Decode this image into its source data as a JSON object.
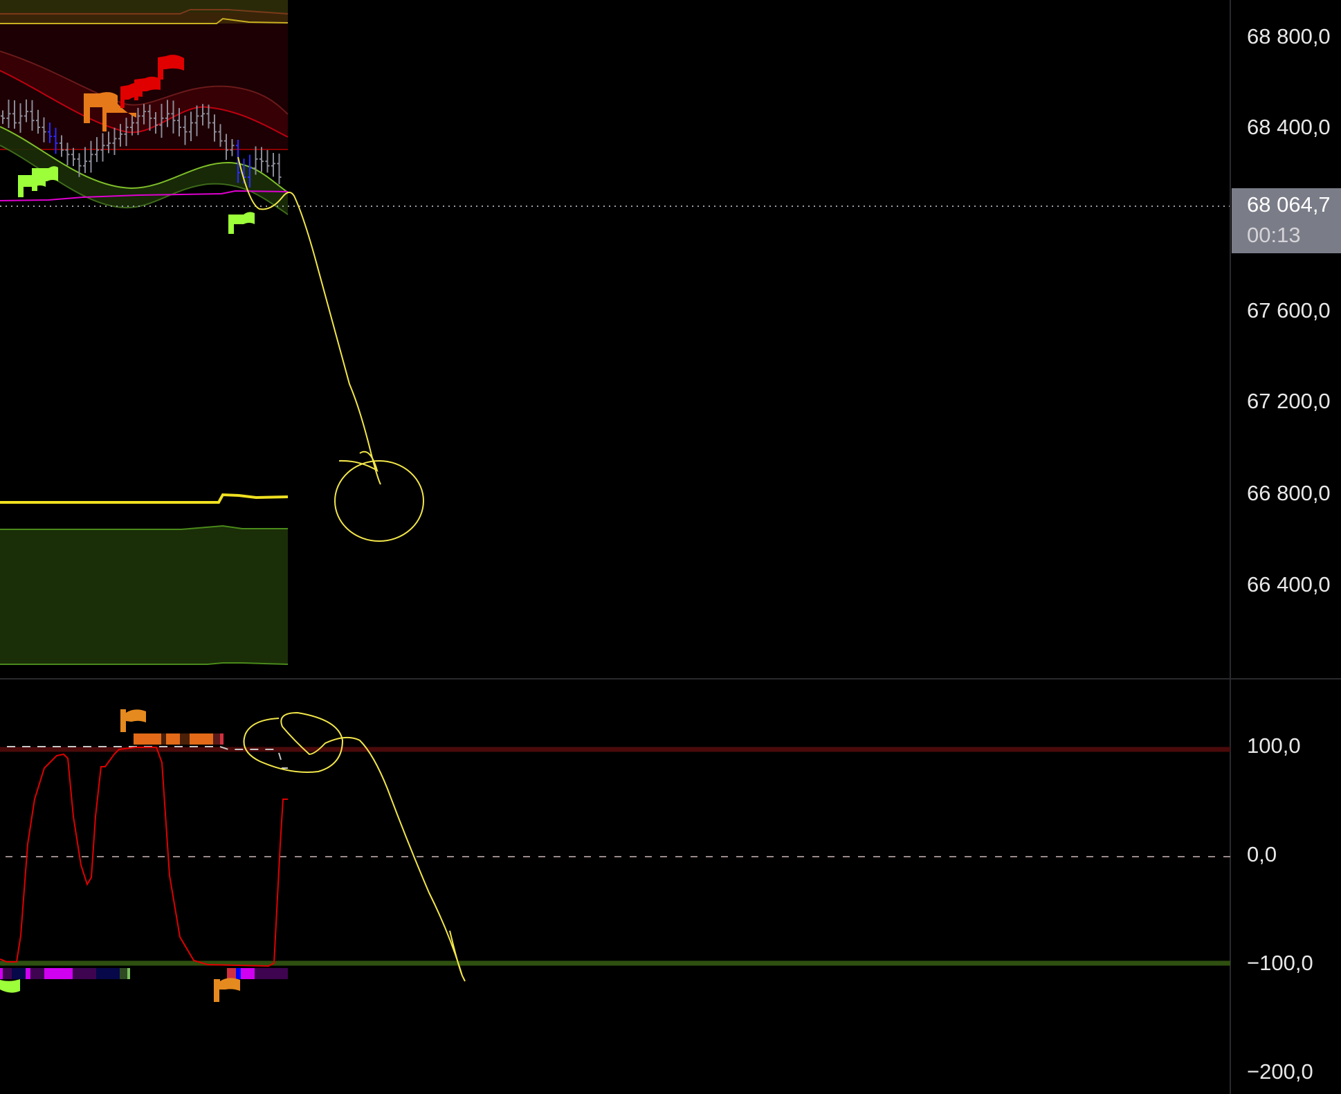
{
  "price_axis": {
    "labels": [
      {
        "text": "68 800,0",
        "value": 68800
      },
      {
        "text": "68 400,0",
        "value": 68400
      },
      {
        "text": "67 600,0",
        "value": 67600
      },
      {
        "text": "67 200,0",
        "value": 67200
      },
      {
        "text": "66 800,0",
        "value": 66800
      },
      {
        "text": "66 400,0",
        "value": 66400
      }
    ],
    "last_price": "68 064,7",
    "countdown": "00:13"
  },
  "oscillator_axis": {
    "labels": [
      {
        "text": "100,0",
        "value": 100
      },
      {
        "text": "0,0",
        "value": 0
      },
      {
        "text": "−100,0",
        "value": -100
      },
      {
        "text": "−200,0",
        "value": -200
      }
    ]
  },
  "colors": {
    "background": "#000000",
    "drawing": "#f2e64a",
    "oscillator": "#e00000",
    "upper_band": "#8b0000",
    "lower_band": "#7fbf2a",
    "overbought_line": "#4a0a0a",
    "oversold_line": "#2f5010",
    "bull_flag": "#9cff3a",
    "bear_flag": "#e00000",
    "warn_flag": "#e58a1f",
    "price_tag": "#7a7c88"
  },
  "candles_close": [
    68440,
    68460,
    68420,
    68450,
    68470,
    68430,
    68400,
    68380,
    68360,
    68330,
    68300,
    68280,
    68260,
    68230,
    68250,
    68280,
    68300,
    68320,
    68330,
    68350,
    68370,
    68400,
    68420,
    68450,
    68470,
    68440,
    68410,
    68440,
    68460,
    68430,
    68400,
    68380,
    68420,
    68450,
    68460,
    68420,
    68380,
    68340,
    68300,
    68320,
    68200,
    68180,
    68220,
    68260,
    68250,
    68230,
    68240,
    68180
  ]
}
